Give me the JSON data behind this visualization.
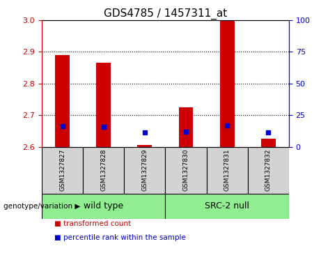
{
  "title": "GDS4785 / 1457311_at",
  "samples": [
    "GSM1327827",
    "GSM1327828",
    "GSM1327829",
    "GSM1327830",
    "GSM1327831",
    "GSM1327832"
  ],
  "red_values": [
    2.89,
    2.865,
    2.605,
    2.725,
    3.0,
    2.625
  ],
  "blue_values": [
    2.665,
    2.664,
    2.645,
    2.648,
    2.668,
    2.645
  ],
  "ylim_left": [
    2.6,
    3.0
  ],
  "yticks_left": [
    2.6,
    2.7,
    2.8,
    2.9,
    3.0
  ],
  "yticks_right": [
    0,
    25,
    50,
    75,
    100
  ],
  "ylim_right": [
    0,
    100
  ],
  "group_spans": [
    [
      0,
      2,
      "wild type"
    ],
    [
      3,
      5,
      "SRC-2 null"
    ]
  ],
  "group_label_prefix": "genotype/variation",
  "bar_width": 0.35,
  "red_color": "#cc0000",
  "blue_color": "#0000cc",
  "left_axis_color": "#cc0000",
  "right_axis_color": "#0000cc",
  "sample_bg_color": "#d3d3d3",
  "group_bg_color": "#90ee90",
  "plot_bg": "#ffffff",
  "legend_items": [
    {
      "color": "#cc0000",
      "label": "transformed count"
    },
    {
      "color": "#0000cc",
      "label": "percentile rank within the sample"
    }
  ],
  "title_fontsize": 11,
  "tick_fontsize": 8,
  "sample_fontsize": 6.5,
  "group_fontsize": 9,
  "legend_fontsize": 7.5
}
